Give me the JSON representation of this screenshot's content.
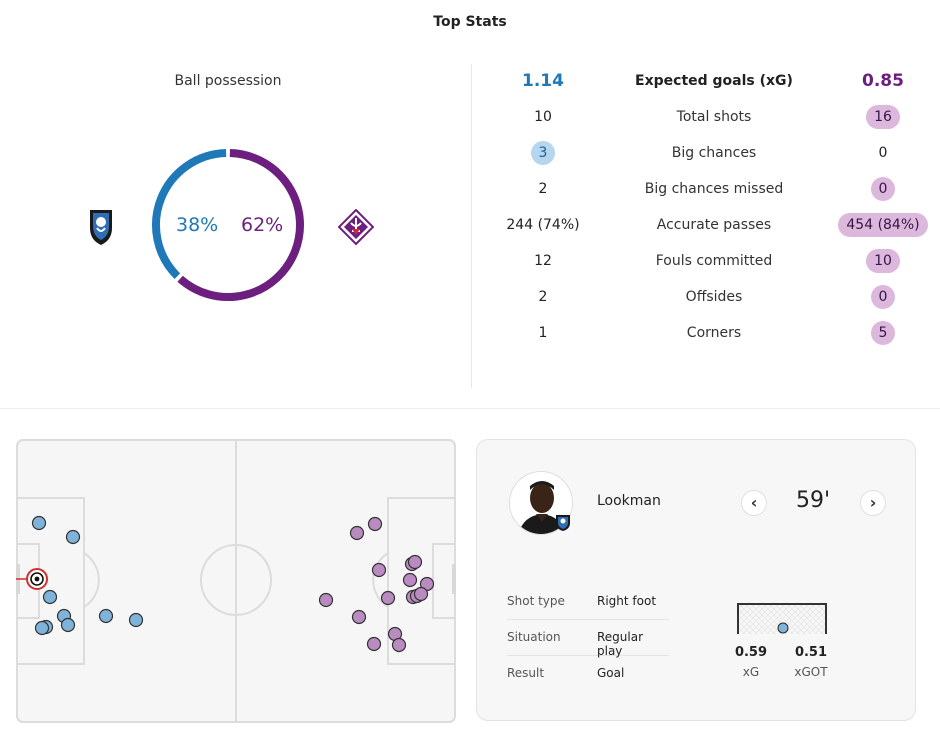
{
  "header": {
    "title": "Top Stats"
  },
  "possession": {
    "label": "Ball possession",
    "home_pct": "38%",
    "away_pct": "62%",
    "home_value": 0.38,
    "away_value": 0.62,
    "home_color": "#1f78b8",
    "away_color": "#6c1f7e",
    "home_crest_icon": "atalanta-crest-icon",
    "away_crest_icon": "fiorentina-crest-icon"
  },
  "stats": [
    {
      "label": "Expected goals (xG)",
      "home": "1.14",
      "away": "0.85",
      "highlight": "none"
    },
    {
      "label": "Total shots",
      "home": "10",
      "away": "16",
      "highlight": "away"
    },
    {
      "label": "Big chances",
      "home": "3",
      "away": "0",
      "highlight": "home"
    },
    {
      "label": "Big chances missed",
      "home": "2",
      "away": "0",
      "highlight": "away"
    },
    {
      "label": "Accurate passes",
      "home": "244 (74%)",
      "away": "454 (84%)",
      "highlight": "away"
    },
    {
      "label": "Fouls committed",
      "home": "12",
      "away": "10",
      "highlight": "away"
    },
    {
      "label": "Offsides",
      "home": "2",
      "away": "0",
      "highlight": "away"
    },
    {
      "label": "Corners",
      "home": "1",
      "away": "5",
      "highlight": "away"
    }
  ],
  "shotmap": {
    "home_color": "#7fb3d9",
    "away_color": "#b98bc0",
    "selected_shot": {
      "team": "home",
      "result": "goal-icon"
    }
  },
  "shot_detail": {
    "player": "Lookman",
    "minute": "59'",
    "prev_icon": "chevron-left-icon",
    "next_icon": "chevron-right-icon",
    "rows": [
      {
        "key": "Shot type",
        "value": "Right foot"
      },
      {
        "key": "Situation",
        "value": "Regular play"
      },
      {
        "key": "Result",
        "value": "Goal"
      }
    ],
    "xg": "0.59",
    "xg_label": "xG",
    "xgot": "0.51",
    "xgot_label": "xGOT"
  }
}
